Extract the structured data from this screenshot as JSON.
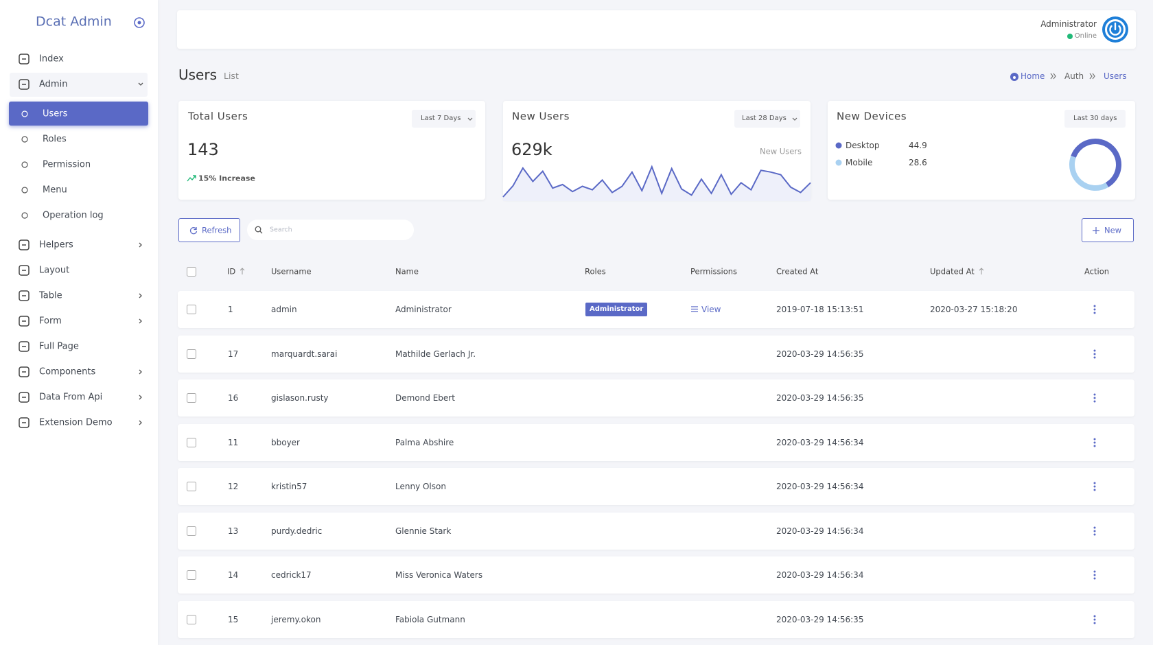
{
  "sidebar": {
    "brand": "Dcat Admin",
    "menu": [
      {
        "label": "Index"
      },
      {
        "label": "Admin",
        "expandable": true,
        "children": [
          "Users",
          "Roles",
          "Permission",
          "Menu",
          "Operation log"
        ]
      },
      {
        "label": "Helpers",
        "expandable": true
      },
      {
        "label": "Layout"
      },
      {
        "label": "Table",
        "expandable": true
      },
      {
        "label": "Form",
        "expandable": true
      },
      {
        "label": "Full Page"
      },
      {
        "label": "Components",
        "expandable": true
      },
      {
        "label": "Data From Api",
        "expandable": true
      },
      {
        "label": "Extension Demo",
        "expandable": true
      }
    ]
  },
  "header": {
    "user": "Administrator",
    "status": "Online"
  },
  "page": {
    "title": "Users",
    "subtitle": "List",
    "breadcrumb": [
      "Home",
      "Auth",
      "Users"
    ]
  },
  "cards": {
    "total_users": {
      "title": "Total Users",
      "range": "Last 7 Days",
      "value": 143,
      "change": "15% Increase"
    },
    "new_users": {
      "title": "New Users",
      "range": "Last 28 Days",
      "value": "629k",
      "label": "New Users",
      "sparkline": [
        20,
        45,
        85,
        55,
        78,
        40,
        48,
        32,
        44,
        36,
        58,
        30,
        44,
        76,
        34,
        88,
        28,
        84,
        38,
        24,
        60,
        28,
        70,
        26,
        52,
        36,
        80,
        76,
        70,
        42,
        30,
        52
      ]
    },
    "new_devices": {
      "title": "New Devices",
      "range": "Last 30 days",
      "series": [
        {
          "name": "Desktop",
          "value": 44.9,
          "color": "#5a69c6"
        },
        {
          "name": "Mobile",
          "value": 28.6,
          "color": "#a9d1f1"
        }
      ]
    }
  },
  "toolbar": {
    "refresh": "Refresh",
    "search_placeholder": "Search",
    "new": "New"
  },
  "table": {
    "columns": [
      {
        "label": "ID",
        "sortable": true
      },
      {
        "label": "Username"
      },
      {
        "label": "Name"
      },
      {
        "label": "Roles"
      },
      {
        "label": "Permissions"
      },
      {
        "label": "Created At"
      },
      {
        "label": "Updated At",
        "sortable": true
      },
      {
        "label": "Action"
      }
    ],
    "rows": [
      {
        "id": 1,
        "username": "admin",
        "name": "Administrator",
        "roles": [
          "Administrator"
        ],
        "permissions": "View",
        "created_at": "2019-07-18 15:13:51",
        "updated_at": "2020-03-27 15:18:20"
      },
      {
        "id": 17,
        "username": "marquardt.sarai",
        "name": "Mathilde Gerlach Jr.",
        "created_at": "2020-03-29 14:56:35"
      },
      {
        "id": 16,
        "username": "gislason.rusty",
        "name": "Demond Ebert",
        "created_at": "2020-03-29 14:56:35"
      },
      {
        "id": 11,
        "username": "bboyer",
        "name": "Palma Abshire",
        "created_at": "2020-03-29 14:56:34"
      },
      {
        "id": 12,
        "username": "kristin57",
        "name": "Lenny Olson",
        "created_at": "2020-03-29 14:56:34"
      },
      {
        "id": 13,
        "username": "purdy.dedric",
        "name": "Glennie Stark",
        "created_at": "2020-03-29 14:56:34"
      },
      {
        "id": 14,
        "username": "cedrick17",
        "name": "Miss Veronica Waters",
        "created_at": "2020-03-29 14:56:34"
      },
      {
        "id": 15,
        "username": "jeremy.okon",
        "name": "Fabiola Gutmann",
        "created_at": "2020-03-29 14:56:35"
      }
    ]
  }
}
